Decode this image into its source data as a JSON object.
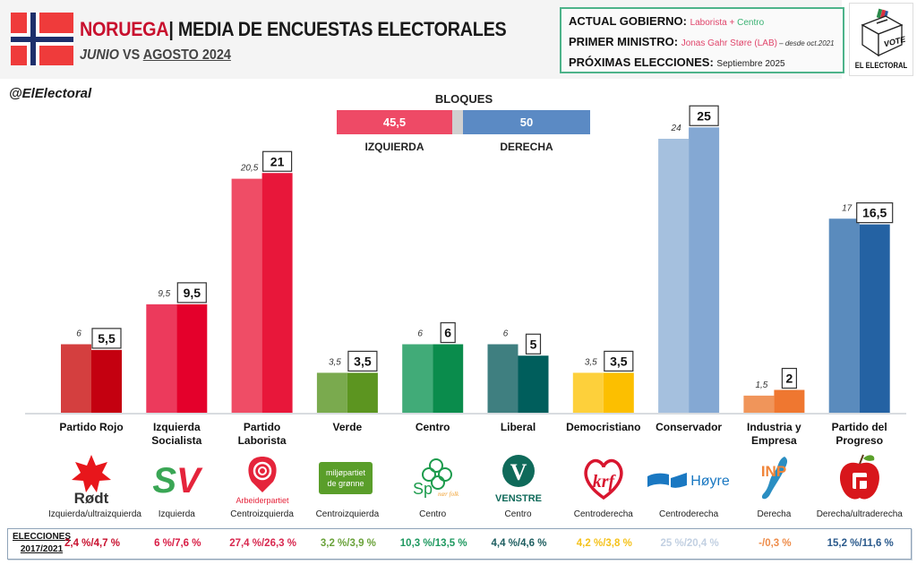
{
  "header": {
    "country": "NORUEGA",
    "separator": "|",
    "title": "MEDIA DE ENCUESTAS ELECTORALES",
    "subtitle_a": "JUNIO",
    "subtitle_b": " VS ",
    "subtitle_c": "AGOSTO 2024",
    "handle": "@ElElectoral"
  },
  "info": {
    "gov_label": "ACTUAL GOBIERNO:",
    "gov_value_1": "Laborista",
    "gov_plus": " + ",
    "gov_value_2": "Centro",
    "pm_label": "PRIMER MINISTRO:",
    "pm_value": "Jonas Gahr Støre (LAB)",
    "pm_since": " – desde oct.2021",
    "next_label": "PRÓXIMAS ELECCIONES:",
    "next_value": "Septiembre 2025"
  },
  "logo": {
    "vote": "VOTE",
    "caption": "EL ELECTORAL"
  },
  "blocks": {
    "title": "BLOQUES",
    "left_value": "45,5",
    "left_label": "IZQUIERDA",
    "right_value": "50",
    "right_label": "DERECHA",
    "left_color": "#ee4a66",
    "right_color": "#5b8ac4"
  },
  "chart_data": {
    "type": "bar",
    "title": "NORUEGA | MEDIA DE ENCUESTAS ELECTORALES",
    "subtitle": "JUNIO VS AGOSTO 2024",
    "xlabel": "",
    "ylabel": "",
    "ylim": [
      0,
      26
    ],
    "grid": false,
    "categories": [
      "Partido Rojo",
      "Izquierda Socialista",
      "Partido Laborista",
      "Verde",
      "Centro",
      "Liberal",
      "Democristiano",
      "Conservador",
      "Industria y Empresa",
      "Partido del Progreso"
    ],
    "category_lines": [
      [
        "Partido Rojo"
      ],
      [
        "Izquierda",
        "Socialista"
      ],
      [
        "Partido",
        "Laborista"
      ],
      [
        "Verde"
      ],
      [
        "Centro"
      ],
      [
        "Liberal"
      ],
      [
        "Democristiano"
      ],
      [
        "Conservador"
      ],
      [
        "Industria y",
        "Empresa"
      ],
      [
        "Partido del",
        "Progreso"
      ]
    ],
    "series": [
      {
        "name": "Junio 2024",
        "values": [
          6,
          9.5,
          20.5,
          3.5,
          6,
          6,
          3.5,
          24,
          1.5,
          17
        ],
        "labels": [
          "6",
          "9,5",
          "20,5",
          "3,5",
          "6",
          "6",
          "3,5",
          "24",
          "1,5",
          "17"
        ]
      },
      {
        "name": "Agosto 2024",
        "values": [
          5.5,
          9.5,
          21,
          3.5,
          6,
          5,
          3.5,
          25,
          2,
          16.5
        ],
        "labels": [
          "5,5",
          "9,5",
          "21",
          "3,5",
          "6",
          "5",
          "3,5",
          "25",
          "2",
          "16,5"
        ]
      }
    ],
    "colors_junio": [
      "#d43f3f",
      "#ec3a5c",
      "#ef4d66",
      "#7aaa4e",
      "#41ab78",
      "#3f7f80",
      "#fdd03b",
      "#a5c0de",
      "#f0955a",
      "#5a8bbd"
    ],
    "colors_agosto": [
      "#c40010",
      "#e4002b",
      "#e8173a",
      "#5c9520",
      "#0a8c4c",
      "#005e5c",
      "#fcbf00",
      "#84a8d3",
      "#ef7730",
      "#2462a3"
    ]
  },
  "parties": {
    "ideology": [
      "Izquierda/ultraizquierda",
      "Izquierda",
      "Centroizquierda",
      "Centroizquierda",
      "Centro",
      "Centro",
      "Centroderecha",
      "Centroderecha",
      "Derecha",
      "Derecha/ultraderecha"
    ],
    "logo_text": [
      "Rødt",
      "SV",
      "Arbeiderpartiet",
      "miljøpartiet de grønne",
      "Sp",
      "VENSTRE",
      "KrF",
      "Høyre",
      "INP",
      "FrP"
    ],
    "logo_sub": [
      "",
      "",
      "",
      "",
      "nær folk",
      "",
      "",
      "",
      "",
      ""
    ]
  },
  "elections": {
    "title_1": "ELECCIONES",
    "title_2": "2017/2021",
    "values": [
      "2,4 %/4,7 %",
      "6 %/7,6 %",
      "27,4 %/26,3 %",
      "3,2 %/3,9 %",
      "10,3 %/13,5 %",
      "4,4 %/4,6 %",
      "4,2 %/3,8 %",
      "25 %/20,4 %",
      "-/0,3 %",
      "15,2 %/11,6 %"
    ],
    "colors": [
      "#c8102e",
      "#d81d45",
      "#d8284f",
      "#6aa23a",
      "#1f9960",
      "#1e5e60",
      "#f5c21b",
      "#c2d0e2",
      "#ee8c4a",
      "#2b5a8c"
    ]
  }
}
